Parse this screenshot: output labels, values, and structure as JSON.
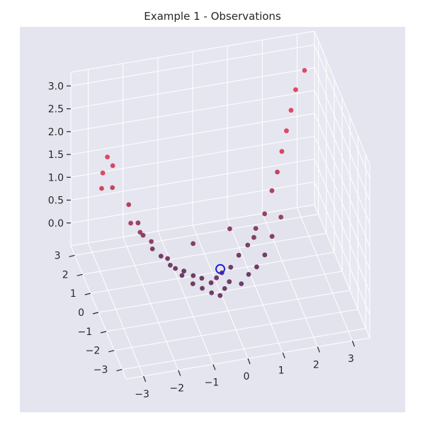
{
  "chart_data": {
    "type": "scatter",
    "projection": "3d",
    "title": "Example 1 - Observations",
    "xlabel": "",
    "ylabel": "",
    "zlabel": "",
    "grid": true,
    "legend": "none",
    "xlim": [
      -3.5,
      3.5
    ],
    "ylim": [
      -3.5,
      3.5
    ],
    "zlim": [
      -0.5,
      3.3
    ],
    "x_ticks": [
      "−3",
      "−2",
      "−1",
      "0",
      "1",
      "2",
      "3"
    ],
    "y_ticks": [
      "−3",
      "−2",
      "−1",
      "0",
      "1",
      "2",
      "3"
    ],
    "z_ticks": [
      "0.0",
      "0.5",
      "1.0",
      "1.5",
      "2.0",
      "2.5",
      "3.0"
    ],
    "colors": {
      "low": "#5a1e4e",
      "high": "#dc2d45",
      "marker": "#1f1fd6",
      "pane": "#e5e5f0"
    },
    "series": [
      {
        "x": [
          -3.0,
          -2.9,
          -2.7,
          -2.5,
          -2.6,
          -2.2,
          -2.0,
          -1.9,
          -1.7,
          -1.5,
          -1.3,
          -1.2,
          -1.0,
          -0.8,
          -0.6,
          -0.4,
          -0.2,
          0.0,
          0.3,
          0.6,
          0.9,
          1.2,
          1.5,
          1.8,
          2.0,
          2.2,
          2.4,
          2.6,
          2.8,
          3.1,
          -1.8,
          -1.4,
          -1.1,
          -0.9,
          -0.7,
          -0.5,
          -0.3,
          -0.1,
          0.1,
          0.4,
          0.7,
          1.0,
          1.3,
          1.6,
          -2.3,
          -2.1,
          -0.6,
          0.5,
          1.1,
          1.9
        ],
        "y": [
          1.8,
          2.1,
          2.4,
          2.6,
          2.2,
          1.9,
          1.6,
          1.4,
          1.1,
          0.9,
          0.6,
          0.4,
          0.2,
          -0.1,
          -0.3,
          -0.6,
          -0.4,
          -0.2,
          0.0,
          0.3,
          0.5,
          0.8,
          1.0,
          1.4,
          1.6,
          1.9,
          2.2,
          2.5,
          2.8,
          3.0,
          0.8,
          0.5,
          0.0,
          -0.5,
          -0.8,
          -1.1,
          -1.3,
          -1.0,
          -0.7,
          -0.9,
          -0.5,
          -0.2,
          0.1,
          0.5,
          1.2,
          0.9,
          0.8,
          1.0,
          0.6,
          0.7
        ],
        "z": [
          1.4,
          1.6,
          1.8,
          1.5,
          1.2,
          0.9,
          0.6,
          0.4,
          0.2,
          0.1,
          0.0,
          0.0,
          0.0,
          0.0,
          0.0,
          0.0,
          0.0,
          0.0,
          0.0,
          0.1,
          0.2,
          0.4,
          0.6,
          0.9,
          1.2,
          1.5,
          1.8,
          2.1,
          2.4,
          2.7,
          0.5,
          0.2,
          0.0,
          0.0,
          0.0,
          0.0,
          0.0,
          0.0,
          0.0,
          0.0,
          0.0,
          0.0,
          0.1,
          0.3,
          0.8,
          0.7,
          0.3,
          0.4,
          0.3,
          0.6
        ]
      }
    ]
  }
}
